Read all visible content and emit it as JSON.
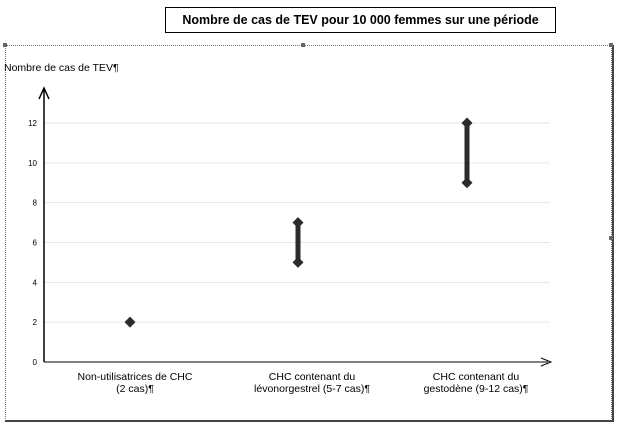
{
  "chart_data": {
    "type": "range",
    "title": "Nombre de cas de TEV pour 10 000 femmes sur une période",
    "ylabel": "Nombre de cas de TEV¶",
    "xlabel": "",
    "ylim": [
      0,
      12
    ],
    "yticks": [
      0,
      2,
      4,
      6,
      8,
      10,
      12
    ],
    "grid": true,
    "categories": [
      [
        "Non-utilisatrices de CHC",
        "(2 cas)¶"
      ],
      [
        "CHC contenant du",
        "lévonorgestrel (5-7 cas)¶"
      ],
      [
        "CHC contenant du",
        "gestodène (9-12 cas)¶"
      ]
    ],
    "ranges": [
      {
        "low": 2,
        "high": 2
      },
      {
        "low": 5,
        "high": 7
      },
      {
        "low": 9,
        "high": 12
      }
    ],
    "colors": {
      "marker": "#2b2b2b",
      "axis": "#000000",
      "grid": "#e6e6e6"
    }
  }
}
